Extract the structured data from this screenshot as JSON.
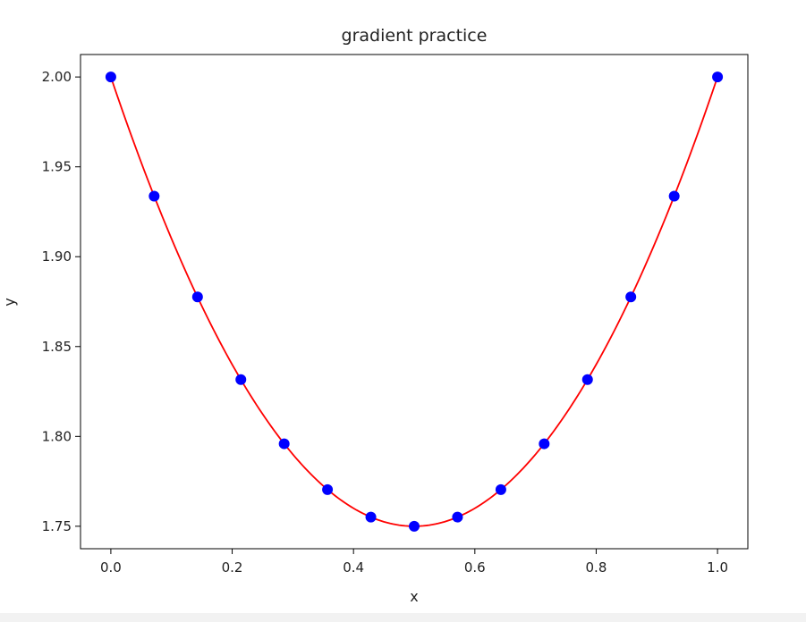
{
  "chart_data": {
    "type": "scatter",
    "title": "gradient practice",
    "xlabel": "x",
    "ylabel": "y",
    "xlim": [
      -0.05,
      1.05
    ],
    "ylim": [
      1.7375,
      2.0125
    ],
    "grid": false,
    "legend": "none",
    "x_ticks": [
      0.0,
      0.2,
      0.4,
      0.6,
      0.8,
      1.0
    ],
    "x_tick_labels": [
      "0.0",
      "0.2",
      "0.4",
      "0.6",
      "0.8",
      "1.0"
    ],
    "y_ticks": [
      1.75,
      1.8,
      1.85,
      1.9,
      1.95,
      2.0
    ],
    "y_tick_labels": [
      "1.75",
      "1.80",
      "1.85",
      "1.90",
      "1.95",
      "2.00"
    ],
    "series": [
      {
        "kind": "scatter",
        "color": "#0000ff",
        "x": [
          0.0,
          0.0714,
          0.1429,
          0.2143,
          0.2857,
          0.3571,
          0.4286,
          0.5,
          0.5714,
          0.6429,
          0.7143,
          0.7857,
          0.8571,
          0.9286,
          1.0
        ],
        "y": [
          2.0,
          1.9337,
          1.8776,
          1.8316,
          1.7959,
          1.7704,
          1.7551,
          1.75,
          1.7551,
          1.7704,
          1.7959,
          1.8316,
          1.8776,
          1.9337,
          2.0
        ]
      },
      {
        "kind": "line",
        "color": "#ff0000",
        "function": "y = (x - 0.5)^2 + 1.75",
        "x_range": [
          0.0,
          1.0
        ]
      }
    ]
  }
}
